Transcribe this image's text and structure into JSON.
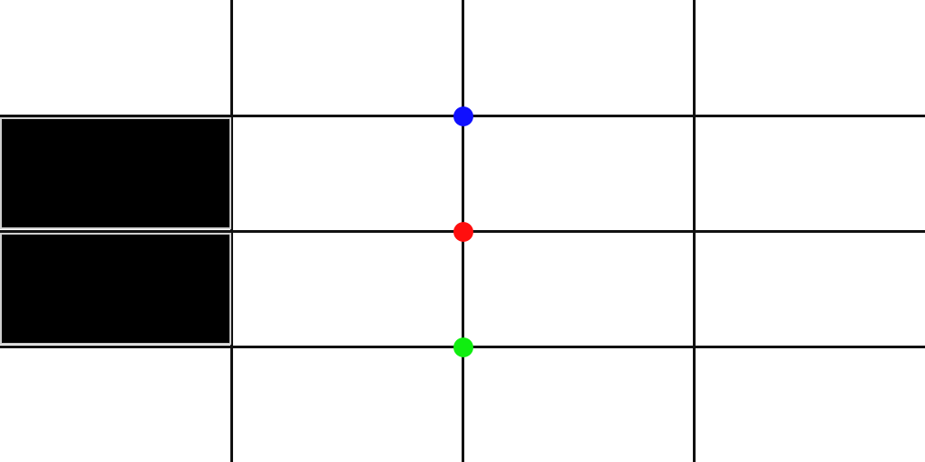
{
  "grid": {
    "columns": 4,
    "rows": 4,
    "line_color": "#111111",
    "background_color": "#ffffff"
  },
  "filled_cells": [
    {
      "row": 1,
      "col": 0,
      "color": "#000000",
      "border_color": "#cfcfcf"
    },
    {
      "row": 2,
      "col": 0,
      "color": "#000000",
      "border_color": "#cfcfcf"
    }
  ],
  "markers": [
    {
      "color_name": "blue",
      "color": "#1010ff",
      "grid_x": 2,
      "grid_y": 1
    },
    {
      "color_name": "red",
      "color": "#ff0e0e",
      "grid_x": 2,
      "grid_y": 2
    },
    {
      "color_name": "green",
      "color": "#10ee10",
      "grid_x": 2,
      "grid_y": 3
    }
  ]
}
